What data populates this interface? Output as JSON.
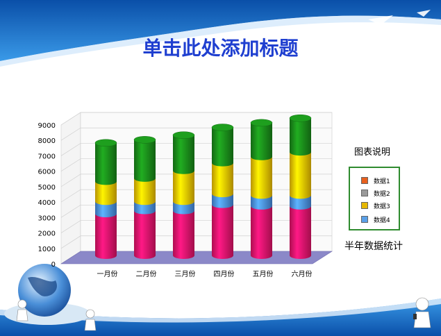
{
  "slide": {
    "title": "单击此处添加标题",
    "legend_title": "图表说明",
    "subtitle": "半年数据统计"
  },
  "colors": {
    "title": "#1f3fd0",
    "banner": "#1767c2",
    "series": [
      "#e8146b",
      "#4a90e8",
      "#f5c400",
      "#1a8a1a"
    ],
    "legend_swatches": [
      "#e8601e",
      "#9a9a9a",
      "#e6b800",
      "#5aa0e8"
    ]
  },
  "chart_data": {
    "type": "bar",
    "stacked": true,
    "categories": [
      "一月份",
      "二月份",
      "三月份",
      "四月份",
      "五月份",
      "六月份"
    ],
    "series": [
      {
        "name": "数据1",
        "values": [
          2700,
          2900,
          2900,
          3300,
          3200,
          3200
        ]
      },
      {
        "name": "数据2",
        "values": [
          800,
          600,
          600,
          700,
          700,
          700
        ]
      },
      {
        "name": "数据3",
        "values": [
          1300,
          1500,
          2000,
          2000,
          2500,
          2800
        ]
      },
      {
        "name": "数据4",
        "values": [
          2500,
          2500,
          2300,
          2300,
          2200,
          2200
        ]
      }
    ],
    "yticks": [
      "0",
      "1000",
      "2000",
      "3000",
      "4000",
      "5000",
      "6000",
      "7000",
      "8000",
      "9000"
    ],
    "ylim": [
      0,
      9000
    ],
    "legend": "right",
    "grid": true
  }
}
